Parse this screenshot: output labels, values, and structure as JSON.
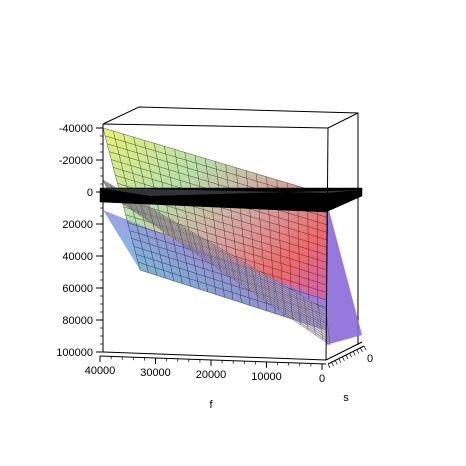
{
  "chart_data": {
    "type": "surface3d",
    "title": "",
    "axes": {
      "f": {
        "label": "f",
        "ticks": [
          40000,
          30000,
          20000,
          10000,
          0
        ],
        "tick_labels": [
          "40000",
          "30000",
          "20000",
          "10000",
          "0"
        ],
        "range": [
          0,
          40000
        ]
      },
      "s": {
        "label": "s",
        "ticks": [
          0
        ],
        "tick_labels": [
          "0"
        ]
      },
      "z": {
        "label": "",
        "ticks": [
          -40000,
          -20000,
          0,
          20000,
          40000,
          60000,
          80000,
          100000
        ],
        "tick_labels": [
          "-40000",
          "-20000",
          "0",
          "20000",
          "40000",
          "60000",
          "80000",
          "100000"
        ],
        "range": [
          -40000,
          100000
        ],
        "reversed": true
      }
    },
    "surfaces": [
      {
        "kind": "rainbow-mesh-plane",
        "corners_fz": [
          [
            40000,
            -40000
          ],
          [
            0,
            0
          ],
          [
            0,
            90000
          ],
          [
            33000,
            50000
          ]
        ]
      },
      {
        "kind": "grey-mesh-plane",
        "corners_fz": [
          [
            40000,
            0
          ],
          [
            0,
            90000
          ],
          [
            2000,
            100000
          ],
          [
            40000,
            8000
          ]
        ]
      },
      {
        "kind": "black-plane",
        "z": 0
      }
    ],
    "box": true,
    "grid": false
  }
}
